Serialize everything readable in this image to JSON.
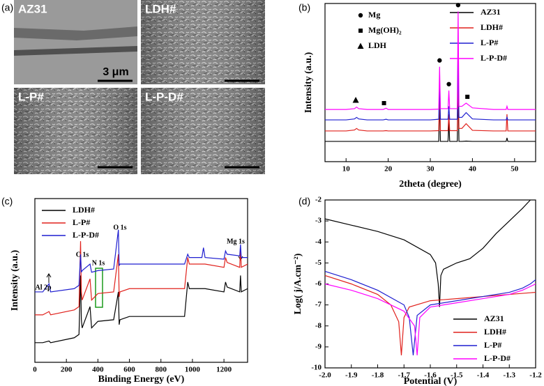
{
  "panel_labels": [
    "(a)",
    "(b)",
    "(c)",
    "(d)"
  ],
  "sem_images": {
    "labels": [
      "AZ31",
      "LDH#",
      "L-P#",
      "L-P-D#"
    ],
    "scale_bar": "3 μm"
  },
  "chart_data": [
    {
      "type": "line",
      "xlabel": "2theta (degree)",
      "ylabel": "Intensity (a.u.)",
      "xlim": [
        5,
        55
      ],
      "ylim": [
        0,
        100
      ],
      "xticks": [
        10,
        20,
        30,
        40,
        50
      ],
      "x": [
        5,
        10,
        12,
        12.5,
        13,
        15,
        18.8,
        19.5,
        20,
        25,
        30,
        32,
        32.2,
        32.4,
        34.2,
        34.4,
        34.6,
        36.4,
        36.6,
        36.8,
        37.5,
        38.5,
        40,
        45,
        48,
        48.2,
        48.4,
        50,
        55
      ],
      "series": [
        {
          "name": "AZ31",
          "color": "#000000",
          "values": [
            12.8,
            12.8,
            12.8,
            12.8,
            12.8,
            12.8,
            12.8,
            12.8,
            12.8,
            12.8,
            12.8,
            12.8,
            40,
            12.8,
            12.8,
            25,
            12.8,
            12.8,
            45,
            12.8,
            12.8,
            13,
            12.8,
            12.8,
            12.8,
            15,
            12.8,
            12.8,
            12.8
          ]
        },
        {
          "name": "LDH#",
          "color": "#e0201b",
          "values": [
            19.4,
            19.4,
            20,
            21,
            20,
            19.4,
            19.4,
            19.6,
            19.4,
            19.4,
            19.4,
            19.6,
            45,
            19.6,
            19.6,
            30,
            19.6,
            19.6,
            55,
            21,
            21,
            24,
            19.8,
            19.4,
            19.4,
            30,
            19.4,
            19.4,
            19.4
          ]
        },
        {
          "name": "L-P#",
          "color": "#1f1fd0",
          "values": [
            26.4,
            26.4,
            27,
            28,
            27,
            26.4,
            26.4,
            26.8,
            26.4,
            26.4,
            26.4,
            26.8,
            50,
            26.8,
            26.8,
            35,
            26.8,
            26.8,
            65,
            28,
            28,
            31,
            27,
            26.4,
            26.4,
            28,
            26.4,
            26.4,
            26.4
          ]
        },
        {
          "name": "L-P-D#",
          "color": "#ff00ff",
          "values": [
            33,
            33,
            33.5,
            34.5,
            33.5,
            33,
            33,
            33.8,
            33,
            33,
            33,
            33.2,
            60,
            33.5,
            33.5,
            45,
            33.5,
            33.5,
            95,
            35,
            35,
            37,
            34,
            33,
            33,
            35,
            33,
            33,
            33
          ]
        }
      ],
      "phase_legend": [
        {
          "symbol": "circle",
          "label": "Mg"
        },
        {
          "symbol": "square",
          "label": "Mg(OH)₂"
        },
        {
          "symbol": "triangle",
          "label": "LDH"
        }
      ],
      "phase_marks": [
        {
          "symbol": "circle",
          "x": 32.2,
          "y": 64
        },
        {
          "symbol": "circle",
          "x": 34.4,
          "y": 49
        },
        {
          "symbol": "circle",
          "x": 36.6,
          "y": 99
        },
        {
          "symbol": "square",
          "x": 19,
          "y": 37
        },
        {
          "symbol": "square",
          "x": 38.8,
          "y": 41
        },
        {
          "symbol": "triangle",
          "x": 12.3,
          "y": 39
        }
      ]
    },
    {
      "type": "line",
      "xlabel": "Binding Energy (eV)",
      "ylabel": "Intensity (a.u.)",
      "xlim": [
        0,
        1350
      ],
      "ylim": [
        0,
        100
      ],
      "xticks": [
        0,
        200,
        400,
        600,
        800,
        1000,
        1200
      ],
      "x": [
        0,
        50,
        90,
        100,
        250,
        280,
        290,
        295,
        300,
        350,
        360,
        400,
        500,
        530,
        535,
        540,
        600,
        950,
        970,
        980,
        1000,
        1060,
        1070,
        1080,
        1200,
        1210,
        1220,
        1300,
        1305,
        1310,
        1350
      ],
      "series": [
        {
          "name": "LDH#",
          "color": "#000000",
          "values": [
            12,
            12,
            13,
            12,
            15,
            17,
            53,
            26,
            21,
            34,
            21,
            25,
            26,
            43,
            23,
            26,
            28,
            28,
            49,
            45,
            45,
            45,
            45,
            45,
            43,
            49,
            46,
            43,
            53,
            43,
            45
          ]
        },
        {
          "name": "L-P#",
          "color": "#e0201b",
          "values": [
            29,
            29,
            31,
            29,
            32,
            34,
            74,
            43,
            38,
            51,
            38,
            42,
            43,
            66,
            40,
            43,
            45,
            45,
            64,
            60,
            60,
            60,
            60,
            60,
            58,
            64,
            61,
            58,
            70,
            58,
            60
          ]
        },
        {
          "name": "L-P-D#",
          "color": "#1f1fd0",
          "values": [
            43,
            43,
            48,
            43,
            45,
            47,
            66,
            55,
            56,
            60,
            55,
            56,
            57,
            81,
            59,
            60,
            60,
            60,
            66,
            64,
            64,
            64,
            70,
            64,
            63,
            68,
            66,
            65,
            72,
            64,
            64
          ]
        }
      ],
      "annotations": [
        "Al 2p",
        "C 1s",
        "N 1s",
        "O 1s",
        "Mg 1s"
      ]
    },
    {
      "type": "line",
      "xlabel": "Potential (V)",
      "ylabel": "Log( j/A.cm⁻²)",
      "xlim": [
        -2,
        -1.2
      ],
      "ylim": [
        -10,
        -2
      ],
      "xticks": [
        {
          "value": -2,
          "label": "-2.0"
        },
        -1.9,
        -1.8,
        -1.7,
        -1.6,
        -1.5,
        -1.4,
        -1.3,
        -1.2
      ],
      "yticks": [
        -10,
        -9,
        -8,
        -7,
        -6,
        -5,
        -4,
        -3,
        -2
      ],
      "series": [
        {
          "name": "AZ31",
          "color": "#000000",
          "x": [
            -2,
            -1.9,
            -1.8,
            -1.7,
            -1.6,
            -1.58,
            -1.57,
            -1.565,
            -1.56,
            -1.55,
            -1.5,
            -1.45,
            -1.4,
            -1.35,
            -1.3,
            -1.25,
            -1.22
          ],
          "values": [
            -2.9,
            -3.2,
            -3.5,
            -3.9,
            -4.6,
            -5.0,
            -6.0,
            -7.1,
            -5.6,
            -5.3,
            -5.0,
            -4.8,
            -4.3,
            -3.6,
            -3.0,
            -2.4,
            -2.0
          ]
        },
        {
          "name": "LDH#",
          "color": "#e0201b",
          "x": [
            -2,
            -1.9,
            -1.8,
            -1.75,
            -1.72,
            -1.71,
            -1.7,
            -1.68,
            -1.6,
            -1.5,
            -1.4,
            -1.3,
            -1.2
          ],
          "values": [
            -5.6,
            -6.0,
            -6.5,
            -7.0,
            -7.8,
            -9.4,
            -7.6,
            -7.1,
            -6.8,
            -6.7,
            -6.6,
            -6.5,
            -6.4
          ]
        },
        {
          "name": "L-P#",
          "color": "#1f1fd0",
          "x": [
            -2,
            -1.9,
            -1.8,
            -1.7,
            -1.68,
            -1.665,
            -1.65,
            -1.6,
            -1.5,
            -1.4,
            -1.3,
            -1.25,
            -1.22,
            -1.2
          ],
          "values": [
            -5.4,
            -5.8,
            -6.3,
            -7.0,
            -7.6,
            -9.4,
            -7.5,
            -7.0,
            -6.8,
            -6.6,
            -6.4,
            -6.2,
            -6.0,
            -5.8
          ]
        },
        {
          "name": "L-P-D#",
          "color": "#ff00ff",
          "x": [
            -2,
            -1.9,
            -1.8,
            -1.7,
            -1.66,
            -1.65,
            -1.64,
            -1.6,
            -1.5,
            -1.4,
            -1.3,
            -1.25,
            -1.2
          ],
          "values": [
            -6.0,
            -6.3,
            -6.7,
            -7.3,
            -8.0,
            -9.4,
            -7.6,
            -7.1,
            -6.9,
            -6.7,
            -6.5,
            -6.3,
            -6.0
          ]
        }
      ]
    }
  ]
}
